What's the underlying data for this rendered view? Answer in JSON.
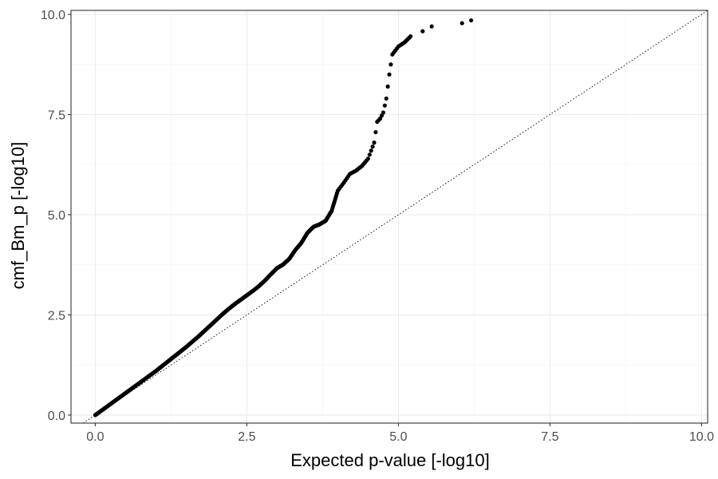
{
  "chart_data": {
    "type": "scatter",
    "xlabel": "Expected p-value [-log10]",
    "ylabel": "cmf_Bm_p [-log10]",
    "xlim": [
      -0.4,
      10.1
    ],
    "ylim": [
      -0.2,
      10.1
    ],
    "x_ticks": [
      0.0,
      2.5,
      5.0,
      7.5,
      10.0
    ],
    "y_ticks": [
      0.0,
      2.5,
      5.0,
      7.5,
      10.0
    ],
    "x_tick_labels": [
      "0.0",
      "2.5",
      "5.0",
      "7.5",
      "10.0"
    ],
    "y_tick_labels": [
      "0.0",
      "2.5",
      "5.0",
      "7.5",
      "10.0"
    ],
    "grid": true,
    "reference_line": "y = x",
    "point_color": "#000000",
    "series": [
      {
        "points": [
          [
            0.0,
            0.0
          ],
          [
            0.1,
            0.11
          ],
          [
            0.2,
            0.22
          ],
          [
            0.3,
            0.33
          ],
          [
            0.4,
            0.44
          ],
          [
            0.5,
            0.55
          ],
          [
            0.6,
            0.66
          ],
          [
            0.7,
            0.77
          ],
          [
            0.8,
            0.88
          ],
          [
            0.9,
            0.99
          ],
          [
            1.0,
            1.1
          ],
          [
            1.1,
            1.22
          ],
          [
            1.2,
            1.34
          ],
          [
            1.3,
            1.46
          ],
          [
            1.4,
            1.58
          ],
          [
            1.5,
            1.7
          ],
          [
            1.6,
            1.83
          ],
          [
            1.7,
            1.96
          ],
          [
            1.8,
            2.1
          ],
          [
            1.9,
            2.24
          ],
          [
            2.0,
            2.38
          ],
          [
            2.1,
            2.52
          ],
          [
            2.2,
            2.65
          ],
          [
            2.3,
            2.77
          ],
          [
            2.4,
            2.88
          ],
          [
            2.5,
            2.99
          ],
          [
            2.6,
            3.1
          ],
          [
            2.7,
            3.22
          ],
          [
            2.8,
            3.36
          ],
          [
            2.9,
            3.52
          ],
          [
            3.0,
            3.67
          ],
          [
            3.1,
            3.76
          ],
          [
            3.2,
            3.9
          ],
          [
            3.3,
            4.12
          ],
          [
            3.4,
            4.3
          ],
          [
            3.5,
            4.55
          ],
          [
            3.6,
            4.7
          ],
          [
            3.7,
            4.76
          ],
          [
            3.8,
            4.85
          ],
          [
            3.9,
            5.1
          ],
          [
            4.0,
            5.6
          ],
          [
            4.1,
            5.8
          ],
          [
            4.2,
            6.02
          ],
          [
            4.3,
            6.1
          ],
          [
            4.4,
            6.22
          ],
          [
            4.5,
            6.4
          ],
          [
            4.6,
            6.8
          ],
          [
            4.65,
            7.32
          ],
          [
            4.7,
            7.4
          ],
          [
            4.75,
            7.55
          ],
          [
            4.8,
            7.9
          ],
          [
            4.85,
            8.5
          ],
          [
            4.9,
            9.0
          ],
          [
            4.95,
            9.1
          ],
          [
            5.0,
            9.2
          ],
          [
            5.1,
            9.3
          ],
          [
            5.2,
            9.45
          ],
          [
            5.4,
            9.58
          ],
          [
            5.55,
            9.7
          ],
          [
            6.05,
            9.78
          ],
          [
            6.2,
            9.85
          ]
        ]
      }
    ]
  }
}
